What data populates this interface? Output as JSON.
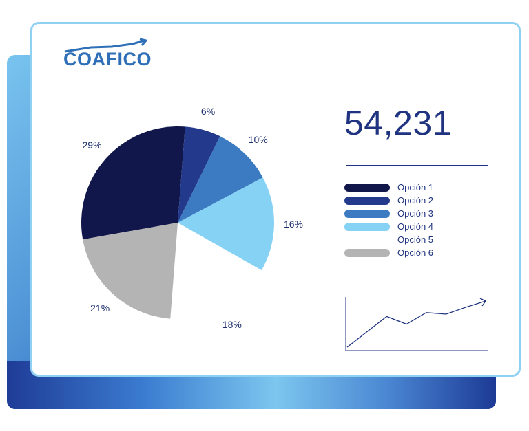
{
  "brand": {
    "name": "COAFICO"
  },
  "headline_value": "54,231",
  "colors": {
    "accent": "#1f3380",
    "card_border": "#8fd0f3",
    "logo": "#2f6fb7"
  },
  "chart_data": [
    {
      "type": "pie",
      "slices": [
        {
          "label": "Opción 1",
          "value": 29,
          "display": "29%",
          "color": "#11174a"
        },
        {
          "label": "Opción 2",
          "value": 6,
          "display": "6%",
          "color": "#233a8c"
        },
        {
          "label": "Opción 3",
          "value": 10,
          "display": "10%",
          "color": "#3c7bc2"
        },
        {
          "label": "Opción 4",
          "value": 16,
          "display": "16%",
          "color": "#86d2f4"
        },
        {
          "label": "Opción 5",
          "value": 18,
          "display": "18%",
          "color": "#ffffff"
        },
        {
          "label": "Opción 6",
          "value": 21,
          "display": "21%",
          "color": "#b4b4b4"
        }
      ],
      "legend_position": "right"
    },
    {
      "type": "line",
      "x": [
        1,
        2,
        3,
        4,
        5,
        6,
        7,
        8
      ],
      "y": [
        1,
        3,
        5,
        4,
        5.5,
        5.3,
        6.2,
        7
      ],
      "grid": false
    }
  ]
}
